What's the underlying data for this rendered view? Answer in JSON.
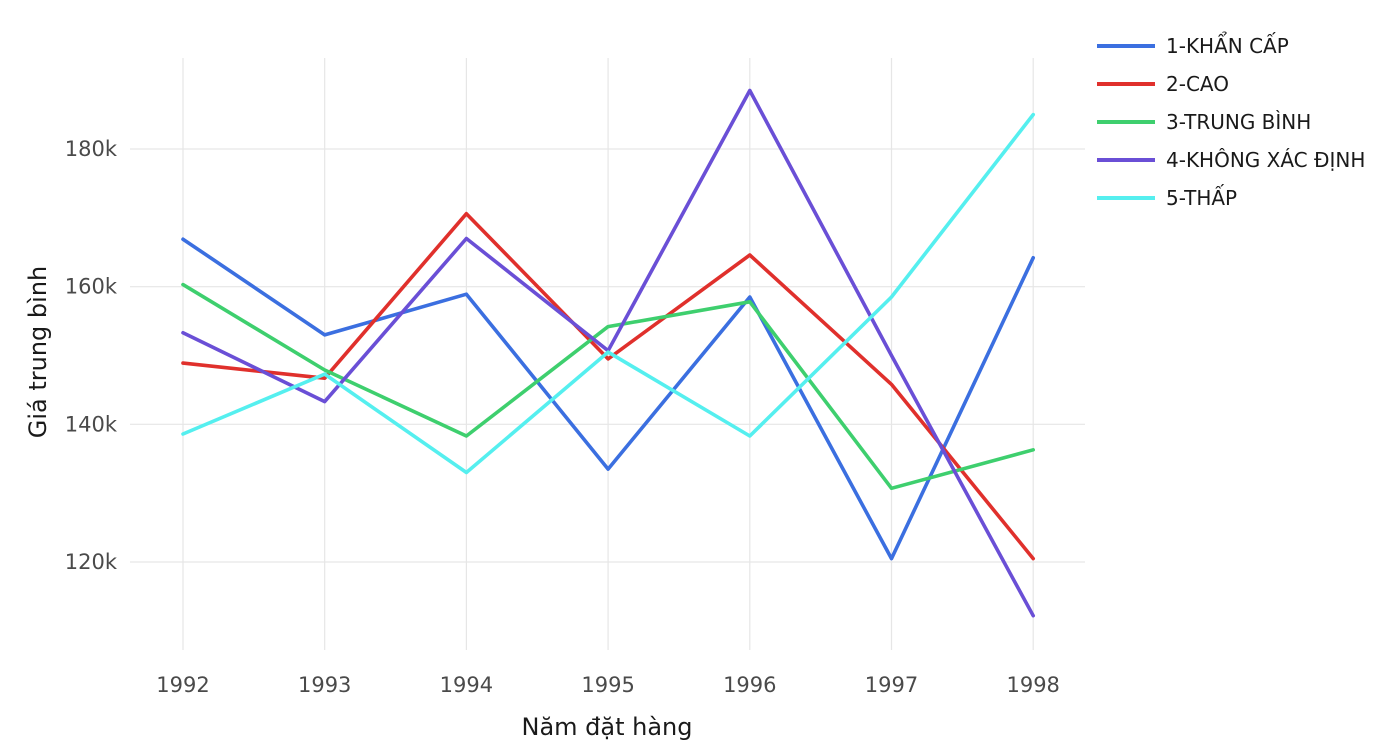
{
  "chart_data": {
    "type": "line",
    "xlabel": "Năm đặt hàng",
    "ylabel": "Giá trung bình",
    "x": [
      "1992",
      "1993",
      "1994",
      "1995",
      "1996",
      "1997",
      "1998"
    ],
    "y_ticks": [
      {
        "value": 120000,
        "label": "120k"
      },
      {
        "value": 140000,
        "label": "140k"
      },
      {
        "value": 160000,
        "label": "160k"
      },
      {
        "value": 180000,
        "label": "180k"
      }
    ],
    "ylim": [
      107000,
      193000
    ],
    "grid": true,
    "legend_position": "right",
    "series": [
      {
        "name": "1-KHẨN CẤP",
        "color": "#3b6fe0",
        "values": [
          166900,
          153000,
          158900,
          133500,
          158500,
          120500,
          164200
        ]
      },
      {
        "name": "2-CAO",
        "color": "#e0302c",
        "values": [
          148900,
          146700,
          170600,
          149500,
          164600,
          145800,
          120500
        ]
      },
      {
        "name": "3-TRUNG BÌNH",
        "color": "#3ecf6e",
        "values": [
          160300,
          147900,
          138300,
          154200,
          157800,
          130700,
          136300
        ]
      },
      {
        "name": "4-KHÔNG XÁC ĐỊNH",
        "color": "#6a4fd6",
        "values": [
          153300,
          143300,
          167000,
          150700,
          188500,
          150000,
          112200
        ]
      },
      {
        "name": "5-THẤP",
        "color": "#55efef",
        "values": [
          138600,
          147300,
          133000,
          150500,
          138300,
          158500,
          185000
        ]
      }
    ]
  }
}
